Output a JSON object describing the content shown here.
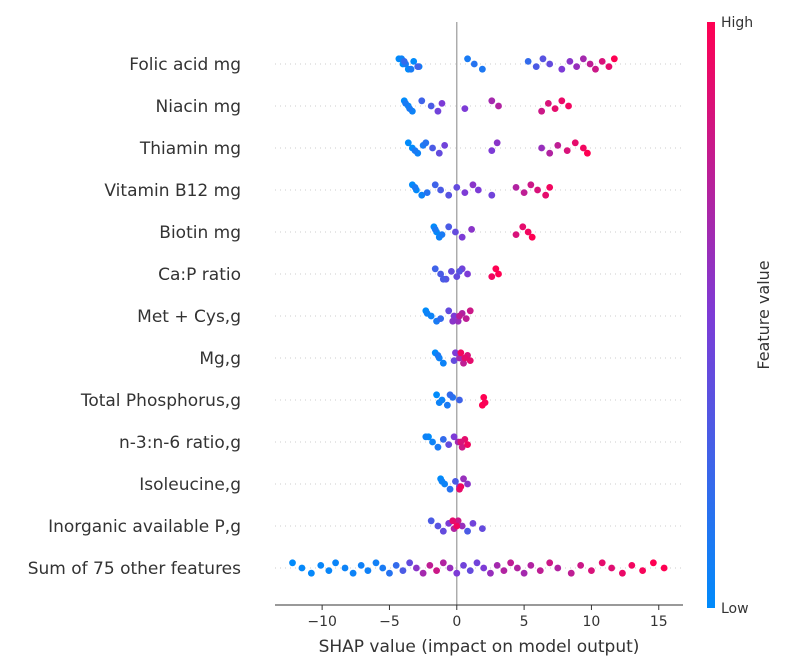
{
  "chart_data": {
    "type": "scatter",
    "subtype": "shap-beeswarm",
    "title": "",
    "xlabel": "SHAP value (impact on model output)",
    "xlim": [
      -13.5,
      16.8
    ],
    "xticks": [
      -10,
      -5,
      0,
      5,
      10,
      15
    ],
    "xtick_labels": [
      "−10",
      "−5",
      "0",
      "5",
      "10",
      "15"
    ],
    "zero_line": true,
    "grid": false,
    "colorbar": {
      "title": "Feature value",
      "high_label": "High",
      "low_label": "Low",
      "low_color": "#008bfb",
      "high_color": "#ff0052"
    },
    "features": [
      {
        "name": "Folic acid mg",
        "points": [
          [
            -4.3,
            0.0
          ],
          [
            -4.0,
            0.0
          ],
          [
            -3.6,
            0.0
          ],
          [
            -3.2,
            0.0
          ],
          [
            -2.8,
            0.05
          ],
          [
            -4.1,
            0.05
          ],
          [
            -3.8,
            0.1
          ],
          [
            -3.4,
            0.1
          ],
          [
            -3.9,
            0.2
          ],
          [
            -2.9,
            0.25
          ],
          [
            0.8,
            0.1
          ],
          [
            1.3,
            0.15
          ],
          [
            1.9,
            0.12
          ],
          [
            5.3,
            0.2
          ],
          [
            5.9,
            0.3
          ],
          [
            6.4,
            0.35
          ],
          [
            6.9,
            0.4
          ],
          [
            7.8,
            0.5
          ],
          [
            8.4,
            0.55
          ],
          [
            8.9,
            0.6
          ],
          [
            9.4,
            0.65
          ],
          [
            9.9,
            0.75
          ],
          [
            10.3,
            0.8
          ],
          [
            10.8,
            0.85
          ],
          [
            11.3,
            0.9
          ],
          [
            11.7,
            1.0
          ]
        ]
      },
      {
        "name": "Niacin mg",
        "points": [
          [
            -3.9,
            0.0
          ],
          [
            -3.6,
            0.0
          ],
          [
            -3.3,
            0.05
          ],
          [
            -3.8,
            0.1
          ],
          [
            -3.5,
            0.1
          ],
          [
            -2.6,
            0.25
          ],
          [
            -1.9,
            0.3
          ],
          [
            -1.4,
            0.45
          ],
          [
            -1.1,
            0.5
          ],
          [
            0.6,
            0.5
          ],
          [
            2.6,
            0.65
          ],
          [
            3.1,
            0.7
          ],
          [
            6.3,
            0.8
          ],
          [
            6.8,
            0.85
          ],
          [
            7.3,
            0.9
          ],
          [
            7.8,
            0.92
          ],
          [
            8.3,
            0.95
          ]
        ]
      },
      {
        "name": "Thiamin mg",
        "points": [
          [
            -3.6,
            0.0
          ],
          [
            -3.3,
            0.0
          ],
          [
            -2.9,
            0.05
          ],
          [
            -2.5,
            0.1
          ],
          [
            -3.1,
            0.1
          ],
          [
            -2.3,
            0.15
          ],
          [
            -1.8,
            0.3
          ],
          [
            -1.3,
            0.4
          ],
          [
            -0.9,
            0.45
          ],
          [
            2.6,
            0.5
          ],
          [
            3.0,
            0.55
          ],
          [
            6.3,
            0.6
          ],
          [
            6.9,
            0.7
          ],
          [
            7.5,
            0.75
          ],
          [
            8.2,
            0.85
          ],
          [
            8.8,
            0.9
          ],
          [
            9.4,
            0.95
          ],
          [
            9.7,
            1.0
          ]
        ]
      },
      {
        "name": "Vitamin B12 mg ",
        "points": [
          [
            -3.3,
            0.0
          ],
          [
            -3.0,
            0.0
          ],
          [
            -2.6,
            0.05
          ],
          [
            -3.1,
            0.1
          ],
          [
            -2.2,
            0.15
          ],
          [
            -1.6,
            0.25
          ],
          [
            -1.2,
            0.3
          ],
          [
            -0.6,
            0.35
          ],
          [
            0.0,
            0.4
          ],
          [
            0.6,
            0.5
          ],
          [
            1.2,
            0.55
          ],
          [
            1.6,
            0.5
          ],
          [
            2.6,
            0.45
          ],
          [
            4.4,
            0.7
          ],
          [
            5.0,
            0.75
          ],
          [
            5.5,
            0.8
          ],
          [
            6.0,
            0.85
          ],
          [
            6.6,
            0.9
          ],
          [
            6.9,
            0.95
          ]
        ]
      },
      {
        "name": "Biotin mg",
        "points": [
          [
            -1.7,
            0.0
          ],
          [
            -1.5,
            0.0
          ],
          [
            -1.3,
            0.05
          ],
          [
            -1.6,
            0.1
          ],
          [
            -1.1,
            0.1
          ],
          [
            -0.6,
            0.3
          ],
          [
            -0.1,
            0.4
          ],
          [
            0.4,
            0.5
          ],
          [
            1.1,
            0.55
          ],
          [
            4.4,
            0.85
          ],
          [
            4.9,
            0.9
          ],
          [
            5.3,
            0.95
          ],
          [
            5.6,
            1.0
          ]
        ]
      },
      {
        "name": "Ca:P ratio",
        "points": [
          [
            -1.6,
            0.25
          ],
          [
            -1.2,
            0.3
          ],
          [
            -0.8,
            0.35
          ],
          [
            -0.4,
            0.4
          ],
          [
            0.0,
            0.4
          ],
          [
            0.4,
            0.45
          ],
          [
            0.8,
            0.5
          ],
          [
            -1.0,
            0.3
          ],
          [
            0.2,
            0.35
          ],
          [
            2.6,
            0.95
          ],
          [
            2.9,
            1.0
          ],
          [
            3.1,
            1.0
          ]
        ]
      },
      {
        "name": "Met + Cys,g",
        "points": [
          [
            -2.3,
            0.0
          ],
          [
            -1.9,
            0.05
          ],
          [
            -1.5,
            0.1
          ],
          [
            -2.2,
            0.05
          ],
          [
            -1.2,
            0.2
          ],
          [
            -0.6,
            0.4
          ],
          [
            -0.2,
            0.5
          ],
          [
            0.1,
            0.6
          ],
          [
            0.4,
            0.7
          ],
          [
            0.7,
            0.75
          ],
          [
            1.0,
            0.8
          ],
          [
            0.2,
            0.75
          ],
          [
            -0.3,
            0.55
          ]
        ]
      },
      {
        "name": "Mg,g",
        "points": [
          [
            -1.6,
            0.0
          ],
          [
            -1.3,
            0.05
          ],
          [
            -1.0,
            0.05
          ],
          [
            -1.4,
            0.1
          ],
          [
            -0.2,
            0.4
          ],
          [
            -0.1,
            0.5
          ],
          [
            0.2,
            0.65
          ],
          [
            0.5,
            0.75
          ],
          [
            0.8,
            0.85
          ],
          [
            1.0,
            0.9
          ],
          [
            0.3,
            0.95
          ],
          [
            0.6,
            0.9
          ]
        ]
      },
      {
        "name": "Total Phosphorus,g",
        "points": [
          [
            -1.5,
            0.0
          ],
          [
            -1.1,
            0.05
          ],
          [
            -0.7,
            0.1
          ],
          [
            -0.3,
            0.15
          ],
          [
            -1.3,
            0.05
          ],
          [
            -0.5,
            0.2
          ],
          [
            0.2,
            0.25
          ],
          [
            1.9,
            1.0
          ],
          [
            2.0,
            1.0
          ],
          [
            2.1,
            0.98
          ]
        ]
      },
      {
        "name": "n-3:n-6 ratio,g",
        "points": [
          [
            -2.1,
            0.0
          ],
          [
            -1.8,
            0.05
          ],
          [
            -1.4,
            0.1
          ],
          [
            -1.0,
            0.2
          ],
          [
            -0.6,
            0.4
          ],
          [
            -0.2,
            0.5
          ],
          [
            0.1,
            0.65
          ],
          [
            0.4,
            0.8
          ],
          [
            0.6,
            0.9
          ],
          [
            0.8,
            0.95
          ],
          [
            -2.3,
            0.05
          ],
          [
            0.3,
            0.85
          ]
        ]
      },
      {
        "name": "Isoleucine,g",
        "points": [
          [
            -1.2,
            0.0
          ],
          [
            -0.9,
            0.05
          ],
          [
            -0.5,
            0.15
          ],
          [
            -0.1,
            0.3
          ],
          [
            0.2,
            0.5
          ],
          [
            0.5,
            0.6
          ],
          [
            0.8,
            0.55
          ],
          [
            0.2,
            0.9
          ],
          [
            -1.1,
            0.05
          ],
          [
            0.3,
            0.95
          ]
        ]
      },
      {
        "name": "Inorganic available P,g",
        "points": [
          [
            -1.9,
            0.3
          ],
          [
            -1.4,
            0.35
          ],
          [
            -1.0,
            0.4
          ],
          [
            -0.6,
            0.5
          ],
          [
            -0.2,
            0.7
          ],
          [
            0.1,
            0.8
          ],
          [
            0.4,
            0.6
          ],
          [
            0.8,
            0.3
          ],
          [
            1.2,
            0.45
          ],
          [
            1.9,
            0.4
          ],
          [
            -0.3,
            0.9
          ],
          [
            0.0,
            0.95
          ]
        ]
      },
      {
        "name": "Sum of 75 other features",
        "points": [
          [
            -12.2,
            0.0
          ],
          [
            -11.5,
            0.02
          ],
          [
            -10.8,
            0.02
          ],
          [
            -10.1,
            0.03
          ],
          [
            -9.5,
            0.03
          ],
          [
            -9.0,
            0.04
          ],
          [
            -8.3,
            0.05
          ],
          [
            -7.7,
            0.05
          ],
          [
            -7.1,
            0.06
          ],
          [
            -6.6,
            0.06
          ],
          [
            -6.0,
            0.07
          ],
          [
            -5.5,
            0.1
          ],
          [
            -5.0,
            0.15
          ],
          [
            -4.5,
            0.2
          ],
          [
            -4.0,
            0.3
          ],
          [
            -3.5,
            0.4
          ],
          [
            -3.0,
            0.55
          ],
          [
            -2.5,
            0.65
          ],
          [
            -2.0,
            0.75
          ],
          [
            -1.5,
            0.8
          ],
          [
            -1.0,
            0.7
          ],
          [
            -0.5,
            0.6
          ],
          [
            0.0,
            0.5
          ],
          [
            0.5,
            0.45
          ],
          [
            1.0,
            0.4
          ],
          [
            1.5,
            0.45
          ],
          [
            2.0,
            0.5
          ],
          [
            2.5,
            0.6
          ],
          [
            3.0,
            0.65
          ],
          [
            3.5,
            0.7
          ],
          [
            4.0,
            0.75
          ],
          [
            4.5,
            0.7
          ],
          [
            5.0,
            0.65
          ],
          [
            5.5,
            0.7
          ],
          [
            6.2,
            0.75
          ],
          [
            6.9,
            0.8
          ],
          [
            7.5,
            0.7
          ],
          [
            8.5,
            0.75
          ],
          [
            9.2,
            0.8
          ],
          [
            10.0,
            0.85
          ],
          [
            10.8,
            0.9
          ],
          [
            11.5,
            0.88
          ],
          [
            12.3,
            0.92
          ],
          [
            13.0,
            0.95
          ],
          [
            13.8,
            0.97
          ],
          [
            14.6,
            1.0
          ],
          [
            15.4,
            1.0
          ]
        ]
      }
    ]
  }
}
